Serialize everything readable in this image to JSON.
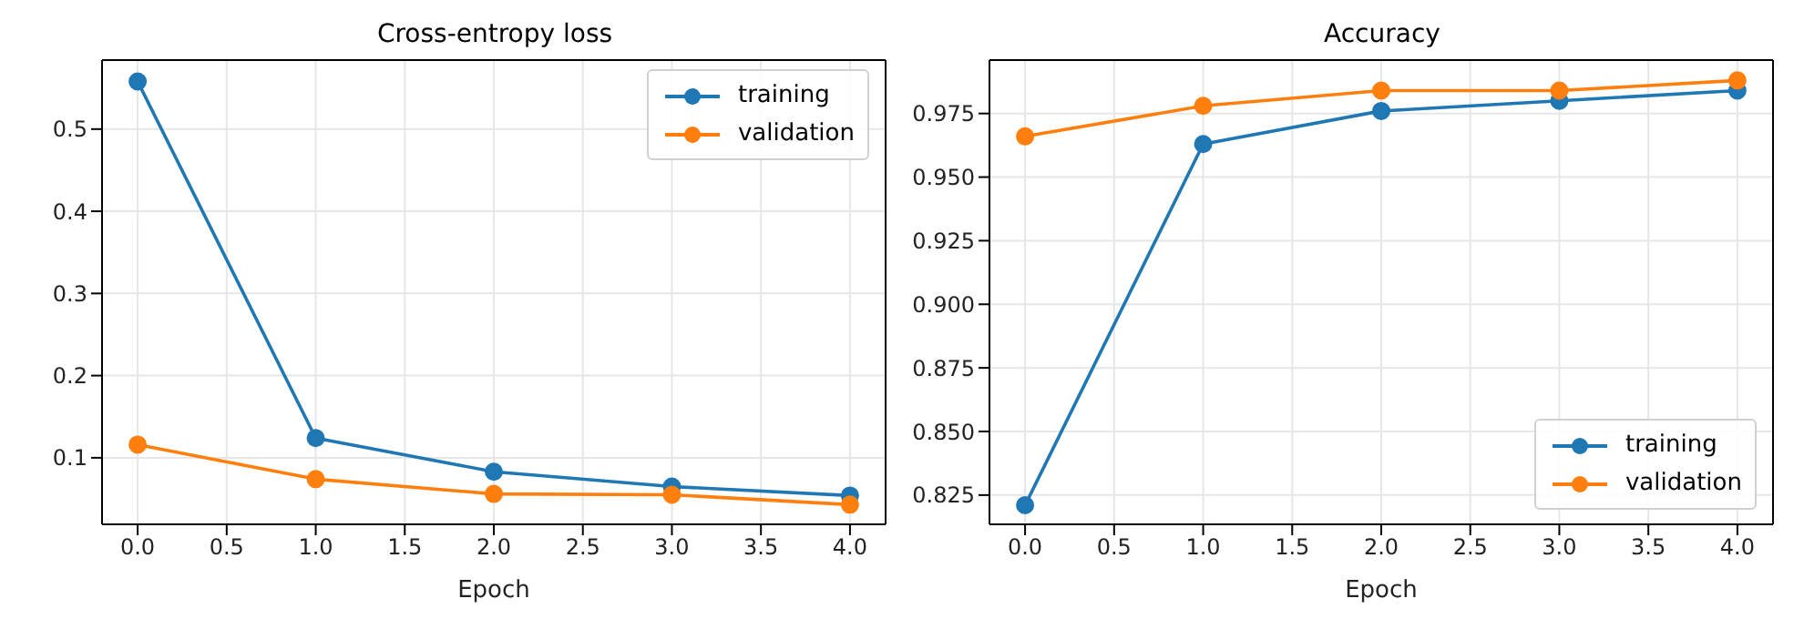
{
  "chart_data": [
    {
      "type": "line",
      "title": "Cross-entropy loss",
      "xlabel": "Epoch",
      "x": [
        0,
        1,
        2,
        3,
        4
      ],
      "series": [
        {
          "name": "training",
          "color": "#1f77b4",
          "values": [
            0.558,
            0.124,
            0.083,
            0.065,
            0.054
          ]
        },
        {
          "name": "validation",
          "color": "#ff7f0e",
          "values": [
            0.116,
            0.074,
            0.056,
            0.055,
            0.043
          ]
        }
      ],
      "xlim": [
        -0.2,
        4.2
      ],
      "xticks": [
        {
          "value": 0,
          "label": "0.0"
        },
        0.5,
        {
          "value": 1,
          "label": "1.0"
        },
        1.5,
        {
          "value": 2,
          "label": "2.0"
        },
        2.5,
        {
          "value": 3,
          "label": "3.0"
        },
        3.5,
        {
          "value": 4,
          "label": "4.0"
        }
      ],
      "ylim": [
        0.019,
        0.584
      ],
      "yticks": [
        0.1,
        0.2,
        0.3,
        0.4,
        0.5
      ],
      "grid": true,
      "legend": "top right",
      "marker": "circle",
      "line_style": "solid"
    },
    {
      "type": "line",
      "title": "Accuracy",
      "xlabel": "Epoch",
      "x": [
        0,
        1,
        2,
        3,
        4
      ],
      "series": [
        {
          "name": "training",
          "color": "#1f77b4",
          "values": [
            0.821,
            0.963,
            0.976,
            0.98,
            0.984
          ]
        },
        {
          "name": "validation",
          "color": "#ff7f0e",
          "values": [
            0.966,
            0.978,
            0.984,
            0.984,
            0.988
          ]
        }
      ],
      "xlim": [
        -0.2,
        4.2
      ],
      "xticks": [
        {
          "value": 0,
          "label": "0.0"
        },
        0.5,
        {
          "value": 1,
          "label": "1.0"
        },
        1.5,
        {
          "value": 2,
          "label": "2.0"
        },
        2.5,
        {
          "value": 3,
          "label": "3.0"
        },
        3.5,
        {
          "value": 4,
          "label": "4.0"
        }
      ],
      "ylim": [
        0.8135,
        0.996
      ],
      "yticks": [
        0.825,
        {
          "value": 0.85,
          "label": "0.850"
        },
        0.875,
        {
          "value": 0.9,
          "label": "0.900"
        },
        0.925,
        {
          "value": 0.95,
          "label": "0.950"
        },
        0.975
      ],
      "grid": true,
      "legend": "bottom right",
      "marker": "circle",
      "line_style": "solid"
    }
  ]
}
